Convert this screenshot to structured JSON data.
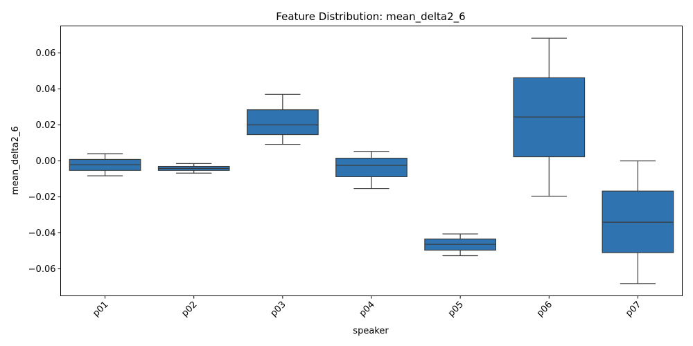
{
  "chart_data": {
    "type": "box",
    "title": "Feature Distribution: mean_delta2_6",
    "xlabel": "speaker",
    "ylabel": "mean_delta2_6",
    "ylim": [
      -0.075,
      0.075
    ],
    "yticks": [
      -0.06,
      -0.04,
      -0.02,
      0.0,
      0.02,
      0.04,
      0.06
    ],
    "ytick_labels": [
      "−0.06",
      "−0.04",
      "−0.02",
      "0.00",
      "0.02",
      "0.04",
      "0.06"
    ],
    "grid": false,
    "box_color": "#2f74b1",
    "line_color": "#3a3a3a",
    "categories": [
      "p01",
      "p02",
      "p03",
      "p04",
      "p05",
      "p06",
      "p07"
    ],
    "boxes": [
      {
        "whisker_low": -0.0083,
        "q1": -0.0053,
        "median": -0.0021,
        "q3": 0.0008,
        "whisker_high": 0.004
      },
      {
        "whisker_low": -0.0068,
        "q1": -0.0053,
        "median": -0.0042,
        "q3": -0.0031,
        "whisker_high": -0.0015
      },
      {
        "whisker_low": 0.0092,
        "q1": 0.0146,
        "median": 0.02,
        "q3": 0.0284,
        "whisker_high": 0.037
      },
      {
        "whisker_low": -0.0154,
        "q1": -0.0088,
        "median": -0.0025,
        "q3": 0.0015,
        "whisker_high": 0.0053
      },
      {
        "whisker_low": -0.0527,
        "q1": -0.0496,
        "median": -0.0464,
        "q3": -0.0434,
        "whisker_high": -0.0406
      },
      {
        "whisker_low": -0.0196,
        "q1": 0.0023,
        "median": 0.0244,
        "q3": 0.0462,
        "whisker_high": 0.0682
      },
      {
        "whisker_low": -0.0682,
        "q1": -0.051,
        "median": -0.0341,
        "q3": -0.0168,
        "whisker_high": 0.0
      }
    ]
  }
}
